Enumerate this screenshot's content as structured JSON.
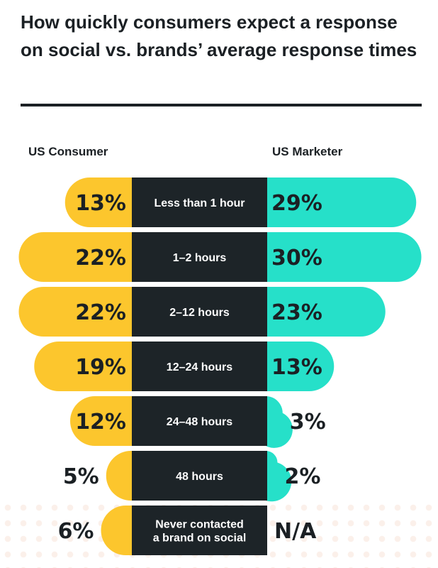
{
  "title": "How quickly consumers expect a response on social vs. brands’ average response times",
  "colors": {
    "consumer": "#fcc62d",
    "marketer": "#26e0c9",
    "center": "#1d2428",
    "text_dark": "#1b2024",
    "text_light": "#ffffff"
  },
  "chart_data": {
    "type": "bar",
    "layout": "diverging",
    "series": [
      {
        "name": "US Consumer",
        "values": [
          13,
          22,
          22,
          19,
          12,
          5,
          6
        ],
        "labels": [
          "13%",
          "22%",
          "22%",
          "19%",
          "12%",
          "5%",
          "6%"
        ]
      },
      {
        "name": "US Marketer",
        "values": [
          29,
          30,
          23,
          13,
          3,
          2,
          null
        ],
        "labels": [
          "29%",
          "30%",
          "23%",
          "13%",
          "3%",
          "2%",
          "N/A"
        ]
      }
    ],
    "categories": [
      [
        "Less than 1 hour"
      ],
      [
        "1–2 hours"
      ],
      [
        "2–12 hours"
      ],
      [
        "12–24 hours"
      ],
      [
        "24–48 hours"
      ],
      [
        "48 hours"
      ],
      [
        "Never contacted",
        "a brand on social"
      ]
    ]
  }
}
